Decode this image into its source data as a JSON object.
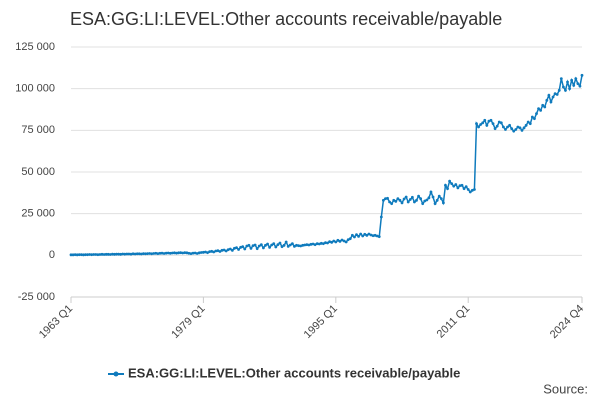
{
  "chart_data": {
    "type": "line",
    "title": "ESA:GG:LI:LEVEL:Other accounts receivable/payable",
    "source": "Source:",
    "categories": [
      "1963 Q1",
      null,
      null,
      null,
      null,
      null,
      null,
      null,
      null,
      null,
      null,
      null,
      null,
      null,
      null,
      null,
      null,
      null,
      null,
      null,
      null,
      null,
      null,
      null,
      null,
      null,
      null,
      null,
      null,
      null,
      null,
      null,
      null,
      null,
      null,
      null,
      null,
      null,
      null,
      null,
      null,
      null,
      null,
      null,
      null,
      null,
      null,
      null,
      null,
      null,
      null,
      null,
      null,
      null,
      null,
      null,
      null,
      null,
      null,
      null,
      null,
      null,
      null,
      null,
      "1979 Q1",
      null,
      null,
      null,
      null,
      null,
      null,
      null,
      null,
      null,
      null,
      null,
      null,
      null,
      null,
      null,
      null,
      null,
      null,
      null,
      null,
      null,
      null,
      null,
      null,
      null,
      null,
      null,
      null,
      null,
      null,
      null,
      null,
      null,
      null,
      null,
      null,
      null,
      null,
      null,
      null,
      null,
      null,
      null,
      null,
      null,
      null,
      null,
      null,
      null,
      null,
      null,
      null,
      null,
      null,
      null,
      null,
      null,
      null,
      null,
      null,
      null,
      null,
      null,
      "1995 Q1",
      null,
      null,
      null,
      null,
      null,
      null,
      null,
      null,
      null,
      null,
      null,
      null,
      null,
      null,
      null,
      null,
      null,
      null,
      null,
      null,
      null,
      null,
      null,
      null,
      null,
      null,
      null,
      null,
      null,
      null,
      null,
      null,
      null,
      null,
      null,
      null,
      null,
      null,
      null,
      null,
      null,
      null,
      null,
      null,
      null,
      null,
      null,
      null,
      null,
      null,
      null,
      null,
      null,
      null,
      null,
      null,
      null,
      null,
      null,
      null,
      null,
      null,
      null,
      "2011 Q1",
      null,
      null,
      null,
      null,
      null,
      null,
      null,
      null,
      null,
      null,
      null,
      null,
      null,
      null,
      null,
      null,
      null,
      null,
      null,
      null,
      null,
      null,
      null,
      null,
      null,
      null,
      null,
      null,
      null,
      null,
      null,
      null,
      null,
      null,
      null,
      null,
      null,
      null,
      null,
      null,
      null,
      null,
      null,
      null,
      null,
      null,
      null,
      null,
      null,
      null,
      null,
      null,
      null,
      null,
      "2024 Q4"
    ],
    "series": [
      {
        "name": "ESA:GG:LI:LEVEL:Other accounts receivable/payable",
        "color": "#0f7bbd",
        "values": [
          300,
          300,
          400,
          300,
          400,
          400,
          300,
          400,
          400,
          500,
          400,
          500,
          500,
          400,
          500,
          600,
          500,
          600,
          600,
          500,
          700,
          600,
          700,
          700,
          600,
          800,
          700,
          800,
          800,
          700,
          900,
          800,
          900,
          900,
          800,
          1000,
          900,
          1000,
          1100,
          900,
          1100,
          1200,
          1000,
          1200,
          1300,
          1100,
          1300,
          1400,
          1200,
          1400,
          1500,
          1300,
          1500,
          1600,
          1400,
          1600,
          1500,
          1200,
          1000,
          1300,
          1400,
          1100,
          1500,
          1700,
          1800,
          2000,
          1600,
          2200,
          2400,
          2000,
          2600,
          2800,
          2300,
          3000,
          3200,
          2600,
          3400,
          3800,
          3000,
          4200,
          4600,
          3500,
          4800,
          5200,
          3800,
          5600,
          6000,
          4200,
          5800,
          6200,
          4000,
          5600,
          6400,
          4500,
          6000,
          6800,
          4800,
          6200,
          7000,
          5000,
          6400,
          7400,
          5200,
          6000,
          8000,
          5400,
          6200,
          7000,
          5400,
          6000,
          5800,
          5600,
          6000,
          6200,
          6400,
          6200,
          6600,
          6800,
          6400,
          7000,
          6800,
          7200,
          7000,
          7600,
          7400,
          8200,
          7800,
          8600,
          8000,
          9000,
          8400,
          9200,
          8600,
          8000,
          9400,
          10000,
          12000,
          11000,
          12400,
          11400,
          12800,
          11600,
          12600,
          12000,
          12800,
          12200,
          11800,
          12000,
          11600,
          11200,
          23000,
          33000,
          34000,
          34200,
          32000,
          31000,
          33000,
          32400,
          34000,
          33000,
          31500,
          33800,
          35000,
          32000,
          33500,
          34800,
          32000,
          33000,
          35500,
          34000,
          31000,
          32600,
          33200,
          34500,
          38000,
          35000,
          31000,
          33000,
          35500,
          34000,
          31500,
          42000,
          40000,
          44500,
          43000,
          41500,
          42500,
          40500,
          41800,
          42000,
          40000,
          41200,
          39500,
          38000,
          39000,
          39500,
          79000,
          77000,
          78500,
          79500,
          81000,
          78000,
          80500,
          81000,
          79000,
          76000,
          77500,
          80000,
          79500,
          77000,
          75500,
          77000,
          78000,
          76000,
          74500,
          75500,
          77000,
          76500,
          75000,
          76500,
          78000,
          80000,
          79000,
          83000,
          82000,
          85000,
          88000,
          87000,
          90000,
          89000,
          93000,
          96000,
          92000,
          95000,
          97000,
          96500,
          99000,
          106000,
          101000,
          99000,
          104000,
          100000,
          105000,
          102000,
          106000,
          103000,
          101500,
          108000
        ]
      }
    ],
    "ylim": [
      -25000,
      125000
    ],
    "yticks": [
      {
        "value": -25000,
        "label": "-25 000"
      },
      0,
      {
        "value": 25000,
        "label": "25 000"
      },
      {
        "value": 50000,
        "label": "50 000"
      },
      {
        "value": 75000,
        "label": "75 000"
      },
      {
        "value": 100000,
        "label": "100 000"
      },
      {
        "value": 125000,
        "label": "125 000"
      }
    ],
    "grid": true
  }
}
